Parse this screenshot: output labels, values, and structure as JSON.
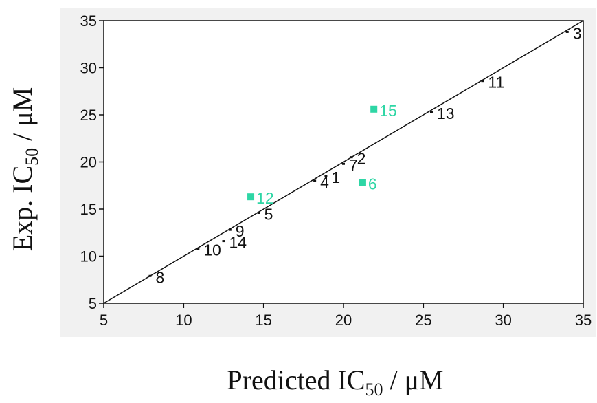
{
  "chart_data": {
    "type": "scatter",
    "xlabel": {
      "prefix": "Predicted IC",
      "sub": "50",
      "suffix": " / μM"
    },
    "ylabel": {
      "prefix": "Exp. IC",
      "sub": "50",
      "suffix": " / μM"
    },
    "xlim": [
      5,
      35
    ],
    "ylim": [
      5,
      35
    ],
    "xticks": [
      5,
      10,
      15,
      20,
      25,
      30,
      35
    ],
    "yticks": [
      5,
      10,
      15,
      20,
      25,
      30,
      35
    ],
    "fit_line": [
      [
        5,
        5
      ],
      [
        35,
        35
      ]
    ],
    "colors": {
      "training": "#111111",
      "test": "#2ed6a5"
    },
    "points": [
      {
        "label": "3",
        "x": 34.0,
        "y": 33.8,
        "group": "training"
      },
      {
        "label": "11",
        "x": 28.7,
        "y": 28.6,
        "group": "training"
      },
      {
        "label": "13",
        "x": 25.5,
        "y": 25.3,
        "group": "training"
      },
      {
        "label": "2",
        "x": 20.5,
        "y": 20.5,
        "group": "training"
      },
      {
        "label": "7",
        "x": 20.0,
        "y": 19.8,
        "group": "training"
      },
      {
        "label": "1",
        "x": 18.9,
        "y": 18.5,
        "group": "training"
      },
      {
        "label": "4",
        "x": 18.2,
        "y": 18.0,
        "group": "training"
      },
      {
        "label": "5",
        "x": 14.7,
        "y": 14.6,
        "group": "training"
      },
      {
        "label": "9",
        "x": 12.9,
        "y": 12.8,
        "group": "training"
      },
      {
        "label": "14",
        "x": 12.5,
        "y": 11.6,
        "group": "training"
      },
      {
        "label": "10",
        "x": 10.9,
        "y": 10.8,
        "group": "training"
      },
      {
        "label": "8",
        "x": 7.9,
        "y": 7.9,
        "group": "training"
      },
      {
        "label": "15",
        "x": 21.9,
        "y": 25.6,
        "group": "test"
      },
      {
        "label": "6",
        "x": 21.2,
        "y": 17.8,
        "group": "test"
      },
      {
        "label": "12",
        "x": 14.2,
        "y": 16.3,
        "group": "test"
      }
    ]
  }
}
